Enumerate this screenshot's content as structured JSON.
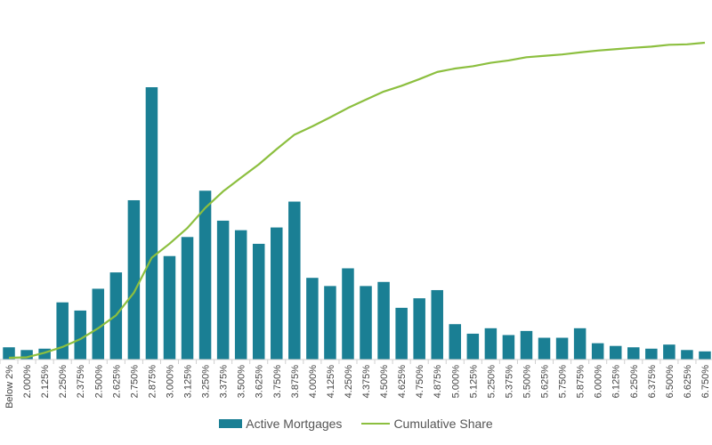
{
  "chart_data": {
    "type": "bar",
    "categories": [
      "Below 2%",
      "2.000%",
      "2.125%",
      "2.250%",
      "2.375%",
      "2.500%",
      "2.625%",
      "2.750%",
      "2.875%",
      "3.000%",
      "3.125%",
      "3.250%",
      "3.375%",
      "3.500%",
      "3.625%",
      "3.750%",
      "3.875%",
      "4.000%",
      "4.125%",
      "4.250%",
      "4.375%",
      "4.500%",
      "4.625%",
      "4.750%",
      "4.875%",
      "5.000%",
      "5.125%",
      "5.250%",
      "5.375%",
      "5.500%",
      "5.625%",
      "5.750%",
      "5.875%",
      "6.000%",
      "6.125%",
      "6.250%",
      "6.375%",
      "6.500%",
      "6.625%",
      "6.750%"
    ],
    "series": [
      {
        "name": "Active Mortgages",
        "type": "bar",
        "color": "#1a7f94",
        "values": [
          4.5,
          3.5,
          4.0,
          21.0,
          18.0,
          26.0,
          32.0,
          58.5,
          100.0,
          38.0,
          45.0,
          62.0,
          51.0,
          47.5,
          42.5,
          48.5,
          58.0,
          30.0,
          27.0,
          33.5,
          27.0,
          28.5,
          19.0,
          22.5,
          25.5,
          13.0,
          9.5,
          11.5,
          9.0,
          10.5,
          8.0,
          8.0,
          11.5,
          6.0,
          5.0,
          4.5,
          4.0,
          5.5,
          3.5,
          3.0
        ]
      },
      {
        "name": "Cumulative Share",
        "type": "line",
        "color": "#8cbf3f",
        "values": [
          0.0,
          0.2,
          2.2,
          4.7,
          8.1,
          12.8,
          18.4,
          28.2,
          43.4,
          49.5,
          56.3,
          65.0,
          72.2,
          78.1,
          83.9,
          90.5,
          96.8,
          100.4,
          104.3,
          108.4,
          112.0,
          115.5,
          118.0,
          120.9,
          124.0,
          125.5,
          126.5,
          128.0,
          129.0,
          130.4,
          131.0,
          131.6,
          132.5,
          133.3,
          133.9,
          134.5,
          135.0,
          135.8,
          136.0,
          136.7
        ]
      }
    ],
    "legend": {
      "position": "bottom-center",
      "items": [
        "Active Mortgages",
        "Cumulative Share"
      ]
    },
    "grid": false,
    "xlabel": "",
    "ylabel": ""
  }
}
